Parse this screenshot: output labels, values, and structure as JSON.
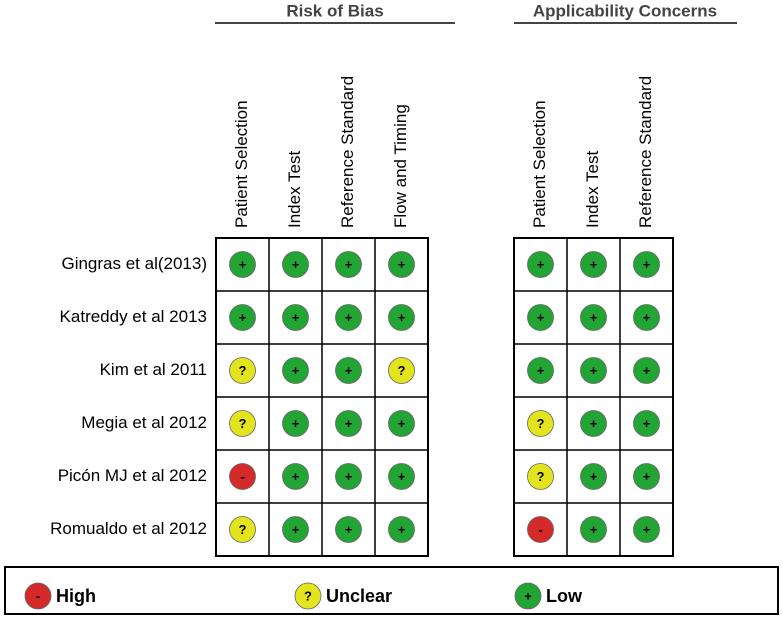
{
  "groups": [
    {
      "title": "Risk of Bias",
      "domains": [
        "Patient Selection",
        "Index Test",
        "Reference Standard",
        "Flow and Timing"
      ]
    },
    {
      "title": "Applicability Concerns",
      "domains": [
        "Patient Selection",
        "Index Test",
        "Reference Standard"
      ]
    }
  ],
  "studies": [
    "Gingras et al(2013)",
    "Katreddy et al 2013",
    "Kim et al 2011",
    "Megia et al 2012",
    "Picón MJ et al 2012",
    "Romualdo et al 2012"
  ],
  "rows": [
    [
      [
        "+",
        "+",
        "+",
        "+"
      ],
      [
        "+",
        "+",
        "+"
      ]
    ],
    [
      [
        "+",
        "+",
        "+",
        "+"
      ],
      [
        "+",
        "+",
        "+"
      ]
    ],
    [
      [
        "?",
        "+",
        "+",
        "?"
      ],
      [
        "+",
        "+",
        "+"
      ]
    ],
    [
      [
        "?",
        "+",
        "+",
        "+"
      ],
      [
        "?",
        "+",
        "+"
      ]
    ],
    [
      [
        "-",
        "+",
        "+",
        "+"
      ],
      [
        "?",
        "+",
        "+"
      ]
    ],
    [
      [
        "?",
        "+",
        "+",
        "+"
      ],
      [
        "-",
        "+",
        "+"
      ]
    ]
  ],
  "legend": [
    {
      "symbol": "-",
      "label": "High",
      "color": "#d42a2a"
    },
    {
      "symbol": "?",
      "label": "Unclear",
      "color": "#e4e41e"
    },
    {
      "symbol": "+",
      "label": "Low",
      "color": "#22a535"
    }
  ]
}
